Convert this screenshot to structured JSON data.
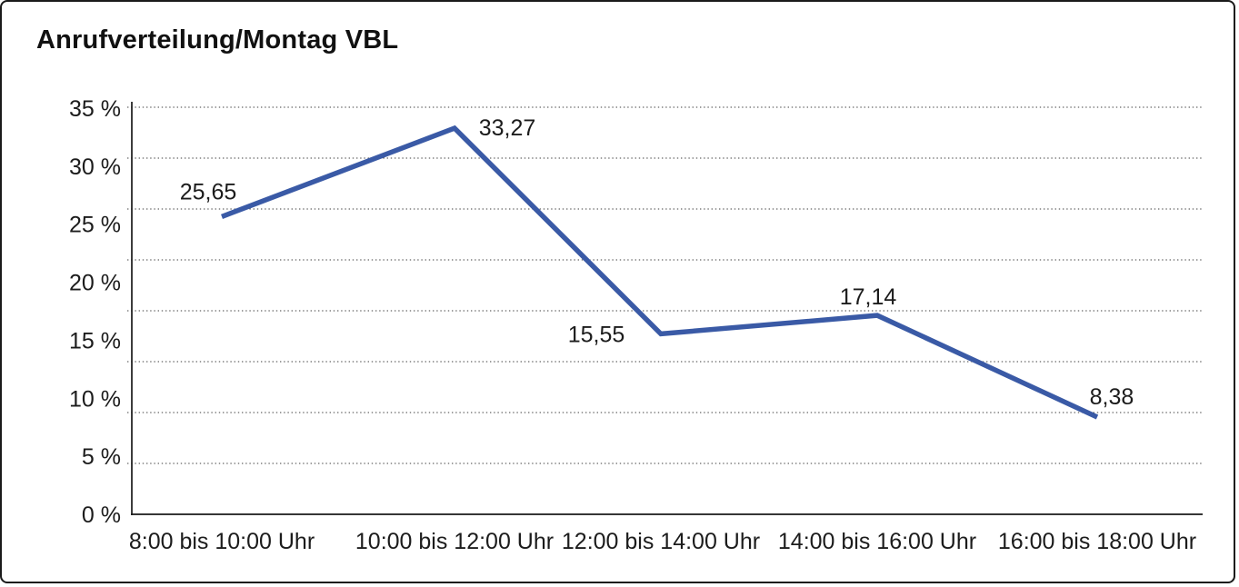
{
  "window": {
    "background_color": "#ffffff",
    "border_color": "#1a1a1a"
  },
  "chart_data": {
    "type": "line",
    "title": "Anrufverteilung/Montag VBL",
    "categories": [
      "8:00 bis 10:00 Uhr",
      "10:00 bis 12:00 Uhr",
      "12:00 bis 14:00 Uhr",
      "14:00 bis 16:00 Uhr",
      "16:00 bis 18:00 Uhr"
    ],
    "values": [
      25.65,
      33.27,
      15.55,
      17.14,
      8.38
    ],
    "point_labels": [
      "25,65",
      "33,27",
      "15,55",
      "17,14",
      "8,38"
    ],
    "xlabel": "",
    "ylabel": "",
    "ylim": [
      0,
      35
    ],
    "y_ticks": [
      {
        "value": 35,
        "label": "35 %"
      },
      {
        "value": 30,
        "label": "30 %"
      },
      {
        "value": 25,
        "label": "25 %"
      },
      {
        "value": 20,
        "label": "20 %"
      },
      {
        "value": 15,
        "label": "15 %"
      },
      {
        "value": 10,
        "label": "10 %"
      },
      {
        "value": 5,
        "label": "5 %"
      },
      {
        "value": 0,
        "label": "0 %"
      }
    ],
    "grid": "horizontal-dotted",
    "grid_divisions": 8,
    "legend": "none",
    "line_color": "#3A5AA6",
    "axis_color": "#1a1a1a",
    "grid_color": "#3d3d3d",
    "label_color": "#1c1c1c"
  }
}
